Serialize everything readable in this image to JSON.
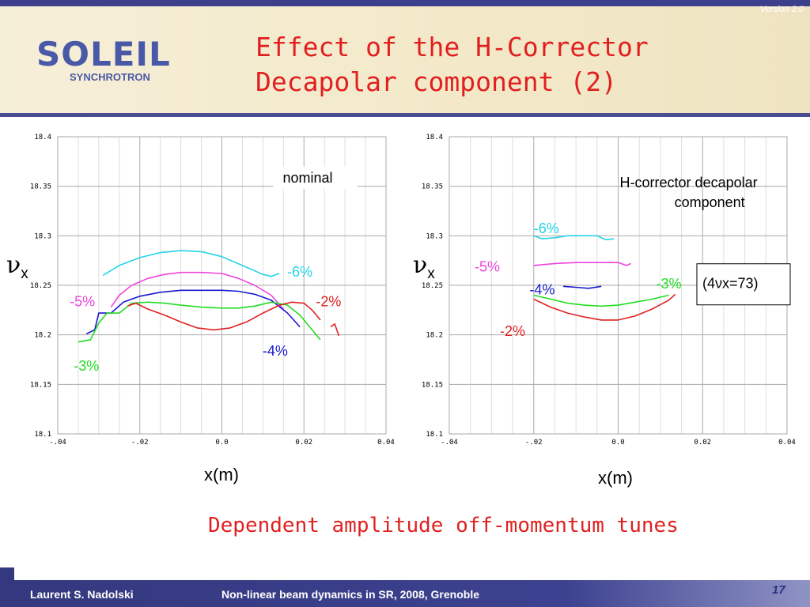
{
  "header": {
    "version": "Version 2.0",
    "logo_word": "SOLEIL",
    "logo_sub": "SYNCHROTRON",
    "title_line1": "Effect of the H-Corrector",
    "title_line2": "Decapolar component (2)"
  },
  "subtitle": "Dependent amplitude off-momentum tunes",
  "footer": {
    "author": "Laurent S. Nadolski",
    "event": "Non-linear beam dynamics in SR,  2008, Grenoble",
    "page": "17"
  },
  "y_symbol": "ν",
  "y_subscript": "x",
  "colors": {
    "cyan": "#22d4e8",
    "magenta": "#ee44dd",
    "blue": "#1a1acc",
    "green": "#22dd22",
    "red": "#e02020",
    "accent": "#e02020"
  },
  "chart_data": [
    {
      "type": "line",
      "xlabel": "x(m)",
      "ylabel": "νx",
      "xlim": [
        -0.04,
        0.04
      ],
      "ylim": [
        18.1,
        18.4
      ],
      "xticks": [
        "-.04",
        "-.02",
        "0.0",
        "0.02",
        "0.04"
      ],
      "yticks": [
        "18.1",
        "18.15",
        "18.2",
        "18.25",
        "18.3",
        "18.35",
        "18.4"
      ],
      "grid": true,
      "annotations": [
        {
          "text": "nominal",
          "x": 0.027,
          "y": 18.365,
          "color": "#000000"
        },
        {
          "text": "-6%",
          "x": 0.019,
          "y": 18.27,
          "color": "#22d4e8"
        },
        {
          "text": "-5%",
          "x": -0.034,
          "y": 18.24,
          "color": "#ee44dd"
        },
        {
          "text": "-2%",
          "x": 0.026,
          "y": 18.24,
          "color": "#e02020"
        },
        {
          "text": "-4%",
          "x": 0.013,
          "y": 18.19,
          "color": "#1a1acc"
        },
        {
          "text": "-3%",
          "x": -0.033,
          "y": 18.175,
          "color": "#22dd22"
        }
      ],
      "series": [
        {
          "name": "-6%",
          "color": "#22d4e8",
          "x": [
            -0.029,
            -0.025,
            -0.02,
            -0.015,
            -0.01,
            -0.005,
            0.0,
            0.005,
            0.01,
            0.012,
            0.014
          ],
          "y": [
            18.26,
            18.27,
            18.278,
            18.283,
            18.285,
            18.284,
            18.279,
            18.27,
            18.261,
            18.259,
            18.262
          ]
        },
        {
          "name": "-5%",
          "color": "#ee44dd",
          "x": [
            -0.027,
            -0.025,
            -0.022,
            -0.018,
            -0.014,
            -0.01,
            -0.005,
            0.0,
            0.004,
            0.008,
            0.012,
            0.015
          ],
          "y": [
            18.228,
            18.24,
            18.25,
            18.257,
            18.261,
            18.263,
            18.263,
            18.262,
            18.257,
            18.25,
            18.24,
            18.226
          ]
        },
        {
          "name": "-4%",
          "color": "#1a1acc",
          "x": [
            -0.033,
            -0.031,
            -0.03,
            -0.027,
            -0.024,
            -0.02,
            -0.015,
            -0.01,
            -0.005,
            0.0,
            0.004,
            0.008,
            0.012,
            0.016,
            0.019
          ],
          "y": [
            18.201,
            18.205,
            18.222,
            18.222,
            18.233,
            18.239,
            18.243,
            18.245,
            18.245,
            18.245,
            18.244,
            18.241,
            18.235,
            18.222,
            18.208
          ]
        },
        {
          "name": "-3%",
          "color": "#22dd22",
          "x": [
            -0.035,
            -0.032,
            -0.03,
            -0.028,
            -0.025,
            -0.022,
            -0.018,
            -0.014,
            -0.01,
            -0.005,
            0.0,
            0.004,
            0.008,
            0.012,
            0.016,
            0.019,
            0.022,
            0.024
          ],
          "y": [
            18.193,
            18.195,
            18.212,
            18.222,
            18.222,
            18.232,
            18.233,
            18.232,
            18.23,
            18.228,
            18.227,
            18.227,
            18.229,
            18.233,
            18.23,
            18.22,
            18.205,
            18.195
          ]
        },
        {
          "name": "-2%",
          "color": "#e02020",
          "x": [
            -0.023,
            -0.021,
            -0.018,
            -0.014,
            -0.01,
            -0.006,
            -0.002,
            0.002,
            0.006,
            0.01,
            0.014,
            0.017,
            0.02,
            0.022,
            0.024
          ],
          "y": [
            18.229,
            18.232,
            18.226,
            18.22,
            18.213,
            18.207,
            18.205,
            18.207,
            18.213,
            18.222,
            18.23,
            18.233,
            18.232,
            18.225,
            18.215
          ]
        },
        {
          "name": "-2%",
          "color": "#e02020",
          "x": [
            0.0265,
            0.0275,
            0.0285
          ],
          "y": [
            18.208,
            18.211,
            18.199
          ]
        }
      ]
    },
    {
      "type": "line",
      "xlabel": "x(m)",
      "ylabel": "νx",
      "xlim": [
        -0.04,
        0.04
      ],
      "ylim": [
        18.1,
        18.4
      ],
      "xticks": [
        "-.04",
        "-.02",
        "0.0",
        "0.02",
        "0.04"
      ],
      "yticks": [
        "18.1",
        "18.15",
        "18.2",
        "18.25",
        "18.3",
        "18.35",
        "18.4"
      ],
      "grid": true,
      "annotations": [
        {
          "text": "H-corrector decapolar",
          "x": 0.033,
          "y": 18.36,
          "color": "#000000"
        },
        {
          "text": "component",
          "x": 0.03,
          "y": 18.34,
          "color": "#000000"
        },
        {
          "text": "-6%",
          "x": -0.017,
          "y": 18.314,
          "color": "#22d4e8"
        },
        {
          "text": "-5%",
          "x": -0.031,
          "y": 18.275,
          "color": "#ee44dd"
        },
        {
          "text": "-4%",
          "x": -0.018,
          "y": 18.252,
          "color": "#1a1acc"
        },
        {
          "text": "-3%",
          "x": 0.012,
          "y": 18.258,
          "color": "#22dd22"
        },
        {
          "text": "-2%",
          "x": -0.025,
          "y": 18.21,
          "color": "#e02020"
        },
        {
          "text": "(4νx=73)",
          "x": 0.034,
          "y": 18.255,
          "color": "#000000"
        }
      ],
      "series": [
        {
          "name": "-6%",
          "color": "#22d4e8",
          "x": [
            -0.02,
            -0.018,
            -0.015,
            -0.012,
            -0.008,
            -0.005,
            -0.003,
            -0.001
          ],
          "y": [
            18.3,
            18.297,
            18.298,
            18.3,
            18.3,
            18.3,
            18.296,
            18.297
          ]
        },
        {
          "name": "-5%",
          "color": "#ee44dd",
          "x": [
            -0.02,
            -0.015,
            -0.01,
            -0.005,
            0.0,
            0.002,
            0.003
          ],
          "y": [
            18.27,
            18.272,
            18.273,
            18.273,
            18.273,
            18.27,
            18.272
          ]
        },
        {
          "name": "-4%",
          "color": "#1a1acc",
          "x": [
            -0.013,
            -0.01,
            -0.007,
            -0.004
          ],
          "y": [
            18.249,
            18.248,
            18.247,
            18.249
          ]
        },
        {
          "name": "-3%",
          "color": "#22dd22",
          "x": [
            -0.02,
            -0.016,
            -0.012,
            -0.008,
            -0.004,
            0.0,
            0.004,
            0.008,
            0.012
          ],
          "y": [
            18.24,
            18.236,
            18.232,
            18.23,
            18.229,
            18.23,
            18.233,
            18.236,
            18.24
          ]
        },
        {
          "name": "-2%",
          "color": "#e02020",
          "x": [
            -0.02,
            -0.016,
            -0.012,
            -0.008,
            -0.004,
            0.0,
            0.004,
            0.008,
            0.012,
            0.0135
          ],
          "y": [
            18.236,
            18.228,
            18.222,
            18.218,
            18.215,
            18.215,
            18.219,
            18.226,
            18.235,
            18.241
          ]
        }
      ]
    }
  ]
}
